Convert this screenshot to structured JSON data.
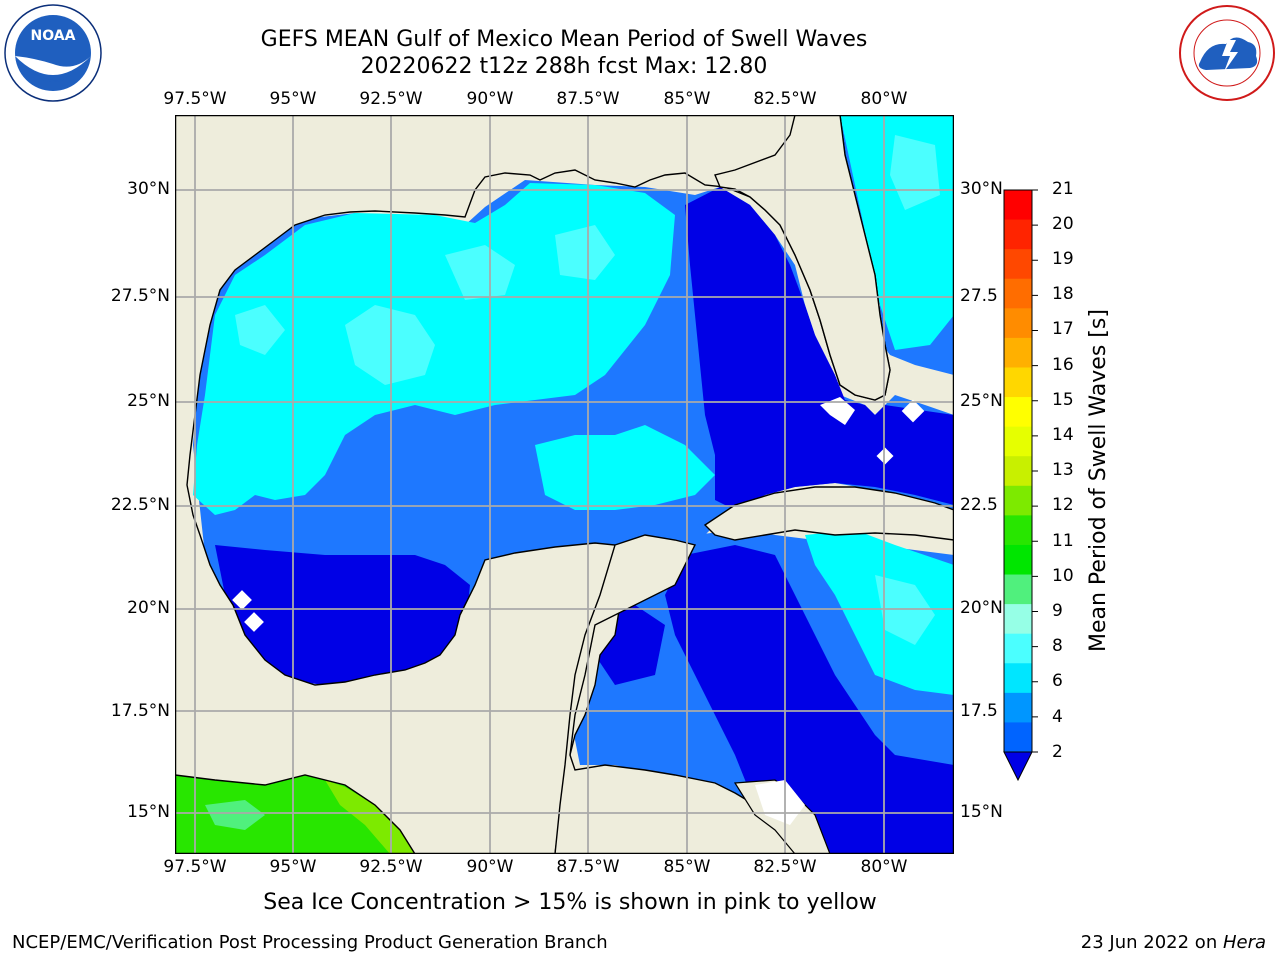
{
  "title_line1": "GEFS MEAN Gulf of Mexico Mean Period of Swell Waves",
  "title_line2": "20220622 t12z 288h fcst   Max: 12.80",
  "lon_ticks": [
    "97.5°W",
    "95°W",
    "92.5°W",
    "90°W",
    "87.5°W",
    "85°W",
    "82.5°W",
    "80°W"
  ],
  "lat_ticks_left": [
    "30°N",
    "27.5°N",
    "25°N",
    "22.5°N",
    "20°N",
    "17.5°N",
    "15°N"
  ],
  "lat_ticks_right": [
    "30°N",
    "27.5",
    "25°N",
    "22.5",
    "20°N",
    "17.5",
    "15°N"
  ],
  "colorbar": {
    "label": "Mean Period of Swell Waves [s]",
    "ticks": [
      "21",
      "20",
      "19",
      "18",
      "17",
      "16",
      "15",
      "14",
      "13",
      "12",
      "11",
      "10",
      "9",
      "8",
      "6",
      "4",
      "2"
    ],
    "colors": [
      "#ff0000",
      "#ff2400",
      "#ff4800",
      "#ff6d00",
      "#ff8c00",
      "#ffb000",
      "#ffd700",
      "#ffff00",
      "#e6ff00",
      "#c8f000",
      "#7dea00",
      "#28e600",
      "#00e600",
      "#50f07d",
      "#96ffe6",
      "#4bffff",
      "#00e6ff",
      "#0096ff",
      "#0064ff",
      "#0000e6"
    ]
  },
  "ice_note": "Sea Ice Concentration > 15% is shown in pink to yellow",
  "footer_left": "NCEP/EMC/Verification Post Processing Product Generation Branch",
  "footer_right_date": "23 Jun 2022 on ",
  "footer_right_host": "Hera",
  "logo_noaa": "NOAA",
  "map_colors": {
    "land": "#eeeddc",
    "deep_blue": "#0000e6",
    "mid_blue": "#1e78ff",
    "cyan": "#00ffff",
    "light_cyan": "#4bffff",
    "green": "#28e600",
    "light_green": "#7dea00",
    "grid": "#aaaaaa"
  }
}
